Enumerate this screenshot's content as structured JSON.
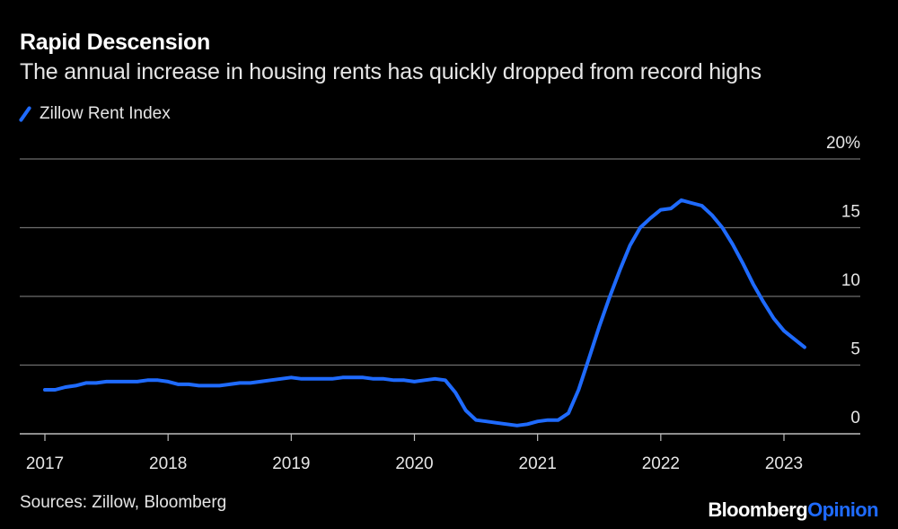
{
  "title": "Rapid Descension",
  "subtitle": "The annual increase in housing rents has quickly dropped from record highs",
  "source": "Sources: Zillow, Bloomberg",
  "brand": {
    "part1": "Bloomberg",
    "part2": "Opinion"
  },
  "colors": {
    "background": "#000000",
    "line": "#1f6bff",
    "grid": "#6e6e6e",
    "text": "#e6e6e6"
  },
  "chart_data": {
    "type": "line",
    "title": "Rapid Descension",
    "xlabel": "",
    "ylabel": "",
    "ylim": [
      0,
      20
    ],
    "xlim": [
      2017.0,
      2023.6
    ],
    "yticks": [
      {
        "value": 20,
        "label": "20%"
      },
      {
        "value": 15,
        "label": "15"
      },
      {
        "value": 10,
        "label": "10"
      },
      {
        "value": 5,
        "label": "5"
      },
      {
        "value": 0,
        "label": "0"
      }
    ],
    "xticks": [
      {
        "value": 2017,
        "label": "2017"
      },
      {
        "value": 2018,
        "label": "2018"
      },
      {
        "value": 2019,
        "label": "2019"
      },
      {
        "value": 2020,
        "label": "2020"
      },
      {
        "value": 2021,
        "label": "2021"
      },
      {
        "value": 2022,
        "label": "2022"
      },
      {
        "value": 2023,
        "label": "2023"
      }
    ],
    "series": [
      {
        "name": "Zillow Rent Index",
        "x": [
          2017.0,
          2017.083,
          2017.167,
          2017.25,
          2017.333,
          2017.417,
          2017.5,
          2017.583,
          2017.667,
          2017.75,
          2017.833,
          2017.917,
          2018.0,
          2018.083,
          2018.167,
          2018.25,
          2018.333,
          2018.417,
          2018.5,
          2018.583,
          2018.667,
          2018.75,
          2018.833,
          2018.917,
          2019.0,
          2019.083,
          2019.167,
          2019.25,
          2019.333,
          2019.417,
          2019.5,
          2019.583,
          2019.667,
          2019.75,
          2019.833,
          2019.917,
          2020.0,
          2020.083,
          2020.167,
          2020.25,
          2020.333,
          2020.417,
          2020.5,
          2020.583,
          2020.667,
          2020.75,
          2020.833,
          2020.917,
          2021.0,
          2021.083,
          2021.167,
          2021.25,
          2021.333,
          2021.417,
          2021.5,
          2021.583,
          2021.667,
          2021.75,
          2021.833,
          2021.917,
          2022.0,
          2022.083,
          2022.167,
          2022.25,
          2022.333,
          2022.417,
          2022.5,
          2022.583,
          2022.667,
          2022.75,
          2022.833,
          2022.917,
          2023.0,
          2023.083,
          2023.167
        ],
        "values": [
          3.2,
          3.2,
          3.4,
          3.5,
          3.7,
          3.7,
          3.8,
          3.8,
          3.8,
          3.8,
          3.9,
          3.9,
          3.8,
          3.6,
          3.6,
          3.5,
          3.5,
          3.5,
          3.6,
          3.7,
          3.7,
          3.8,
          3.9,
          4.0,
          4.1,
          4.0,
          4.0,
          4.0,
          4.0,
          4.1,
          4.1,
          4.1,
          4.0,
          4.0,
          3.9,
          3.9,
          3.8,
          3.9,
          4.0,
          3.9,
          3.0,
          1.7,
          1.0,
          0.9,
          0.8,
          0.7,
          0.6,
          0.7,
          0.9,
          1.0,
          1.0,
          1.5,
          3.2,
          5.5,
          7.8,
          9.9,
          11.9,
          13.7,
          15.0,
          15.7,
          16.3,
          16.4,
          17.0,
          16.8,
          16.6,
          15.9,
          15.0,
          13.8,
          12.4,
          10.9,
          9.6,
          8.4,
          7.5,
          6.9,
          6.3
        ]
      }
    ]
  }
}
